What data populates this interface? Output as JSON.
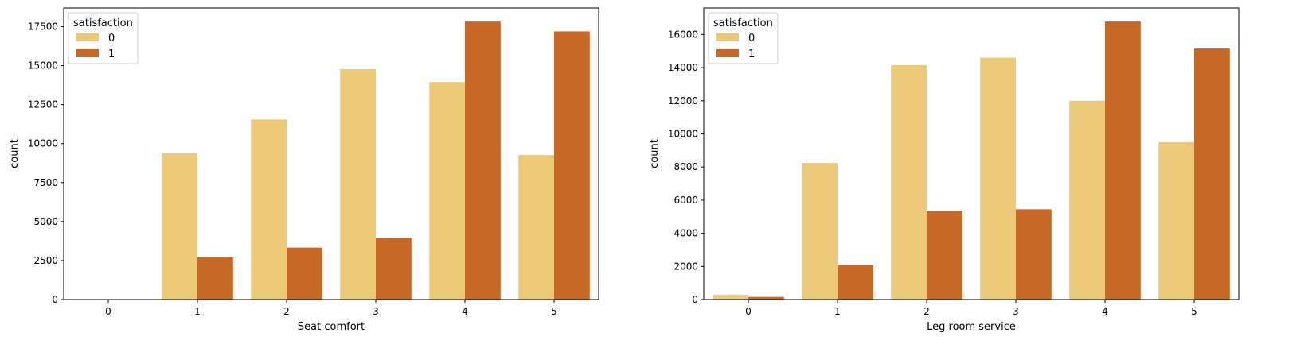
{
  "colors": {
    "series_0": "#ebc977",
    "series_1": "#c66927"
  },
  "chart_data": [
    {
      "type": "bar",
      "categories": [
        "0",
        "1",
        "2",
        "3",
        "4",
        "5"
      ],
      "series": [
        {
          "name": "0",
          "values": [
            0,
            9380,
            11550,
            14780,
            13950,
            9270
          ]
        },
        {
          "name": "1",
          "values": [
            0,
            2700,
            3330,
            3950,
            17830,
            17200
          ]
        }
      ],
      "xlabel": "Seat comfort",
      "ylabel": "count",
      "ylim": [
        0,
        18700
      ],
      "yticks": [
        0,
        2500,
        5000,
        7500,
        10000,
        12500,
        15000,
        17500
      ],
      "legend": {
        "title": "satisfaction",
        "placement": "top-left"
      },
      "grid": false
    },
    {
      "type": "bar",
      "categories": [
        "0",
        "1",
        "2",
        "3",
        "4",
        "5"
      ],
      "series": [
        {
          "name": "0",
          "values": [
            290,
            8240,
            14150,
            14600,
            12000,
            9500
          ]
        },
        {
          "name": "1",
          "values": [
            160,
            2080,
            5350,
            5450,
            16780,
            15150
          ]
        }
      ],
      "xlabel": "Leg room service",
      "ylabel": "count",
      "ylim": [
        0,
        17600
      ],
      "yticks": [
        0,
        2000,
        4000,
        6000,
        8000,
        10000,
        12000,
        14000,
        16000
      ],
      "legend": {
        "title": "satisfaction",
        "placement": "top-left"
      },
      "grid": false
    }
  ]
}
